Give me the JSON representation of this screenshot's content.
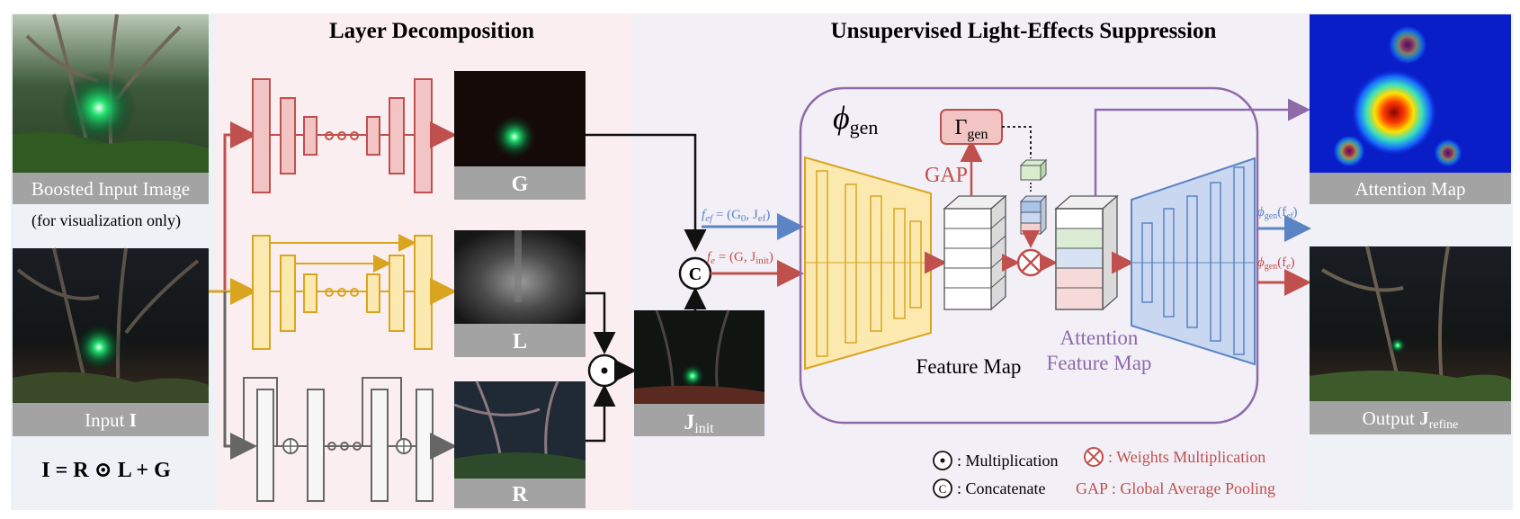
{
  "sections": {
    "layer_decomposition": "Layer Decomposition",
    "light_effects_suppression": "Unsupervised Light-Effects Suppression"
  },
  "left_panel": {
    "boosted_caption": "Boosted Input Image",
    "boosted_note": "(for visualization only)",
    "input_caption_prefix": "Input ",
    "input_caption_symbol": "I",
    "equation": "I = R ⊙ L + G"
  },
  "outputs": {
    "G": "G",
    "L": "L",
    "R": "R",
    "J_init_main": "J",
    "J_init_sub": "init"
  },
  "generator": {
    "phi_symbol": "ϕ",
    "phi_sub": "gen",
    "gamma_symbol": "Γ",
    "gamma_sub": "gen",
    "gap": "GAP",
    "feature_map": "Feature Map",
    "attention_line1": "Attention",
    "attention_line2": "Feature Map",
    "f_ef": "f",
    "f_ef_sub": "ef",
    "f_ef_eq": " = (G",
    "f_ef_g0": "0",
    "f_ef_rest": ", J",
    "f_ef_j": "ef",
    "f_e": "f",
    "f_e_sub": "e",
    "f_e_eq": " = (G, J",
    "f_e_j": "init",
    "phi_out_ef": "ϕ",
    "phi_out_ef_sub": "gen",
    "phi_out_ef_arg": "(f",
    "phi_out_ef_argsub": "ef",
    "phi_out_e": "ϕ",
    "phi_out_e_sub": "gen",
    "phi_out_e_arg": "(f",
    "phi_out_e_argsub": "e",
    "close_paren": ")"
  },
  "right_panel": {
    "attention_caption": "Attention Map",
    "output_prefix": "Output ",
    "output_symbol": "J",
    "output_sub": "refine"
  },
  "legend": {
    "multiplication": ": Multiplication",
    "concatenate": ": Concatenate",
    "weights_mult": ": Weights Multiplication",
    "gap_def": "GAP : Global Average Pooling"
  },
  "ops": {
    "concat_symbol": "C",
    "mult_symbol": "⊙"
  },
  "colors": {
    "red": "#c0504d",
    "red_fill": "#f2c4c4",
    "yellow": "#d9a520",
    "yellow_fill": "#fbe9b0",
    "gray": "#666666",
    "blue": "#5b84c4",
    "blue_fill": "#c9d8f0",
    "purple": "#8e6aa8"
  }
}
